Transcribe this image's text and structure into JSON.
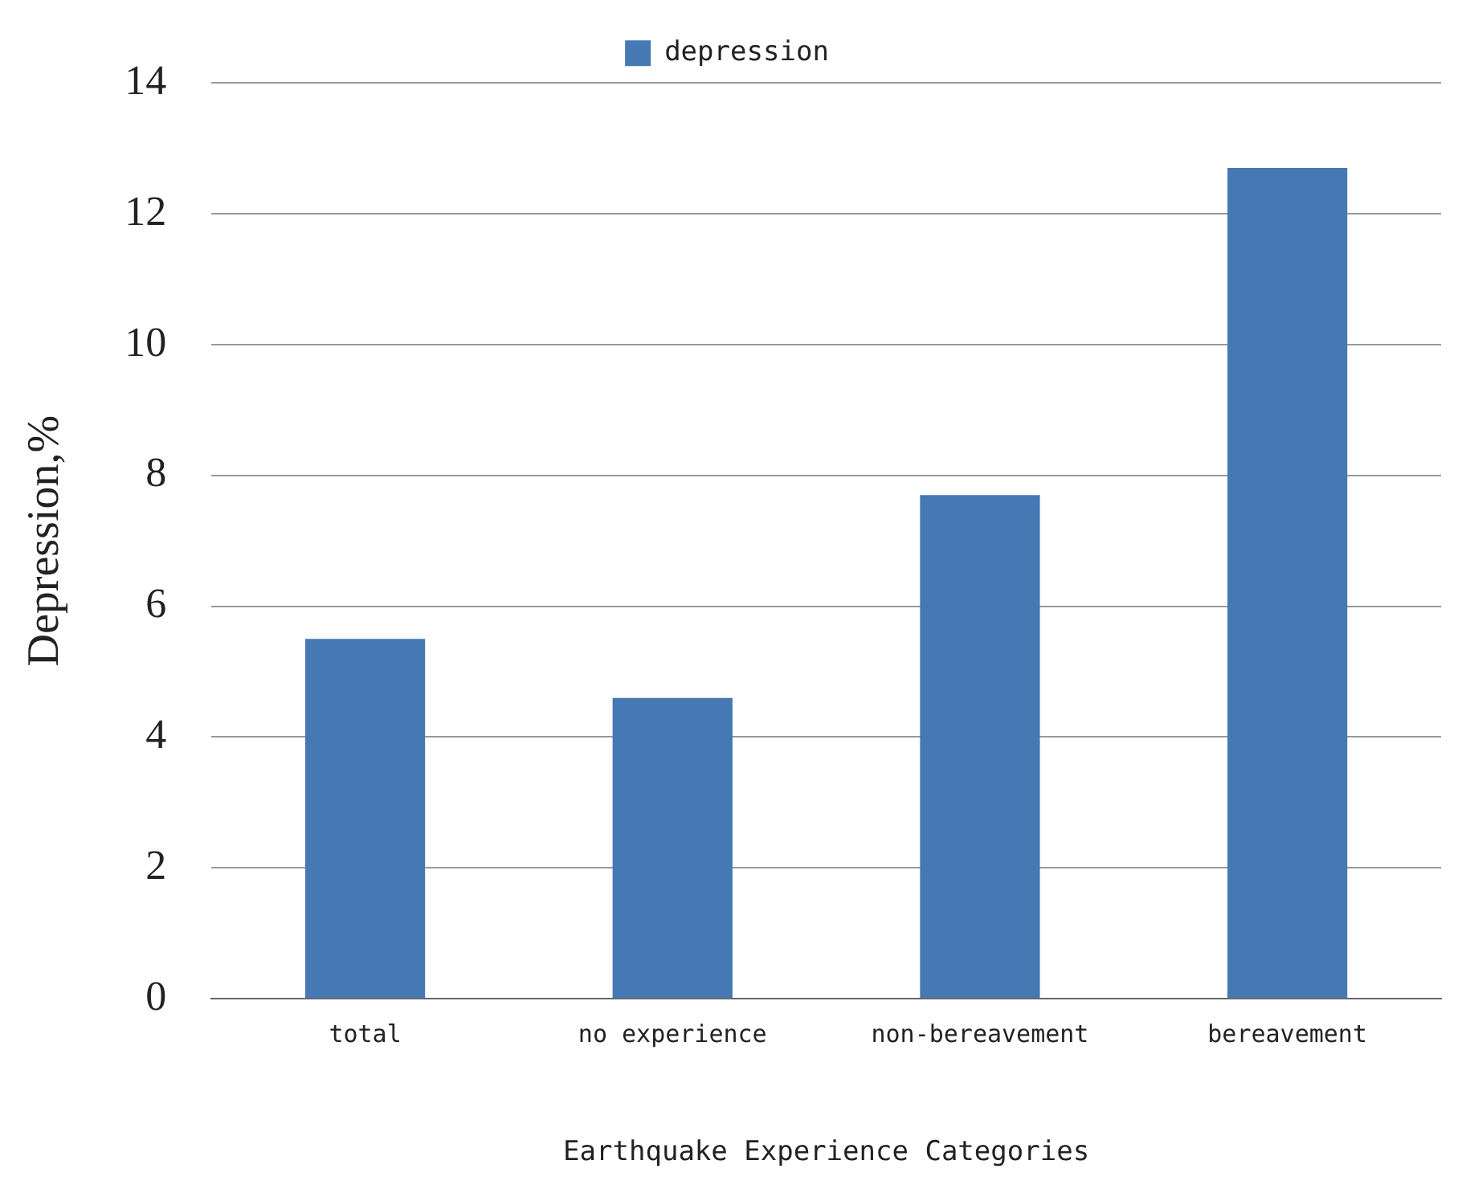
{
  "chart_data": {
    "type": "bar",
    "xlabel": "Earthquake Experience Categories",
    "ylabel": "Depression,%",
    "categories": [
      "total",
      "no experience",
      "non-bereavement",
      "bereavement"
    ],
    "series": [
      {
        "name": "depression",
        "color": "#4679b4",
        "values": [
          5.5,
          4.6,
          7.7,
          12.7
        ]
      }
    ],
    "ylim": [
      0,
      14
    ],
    "yticks": [
      0,
      2,
      4,
      6,
      8,
      10,
      12,
      14
    ],
    "grid": "y",
    "legend": "top"
  }
}
